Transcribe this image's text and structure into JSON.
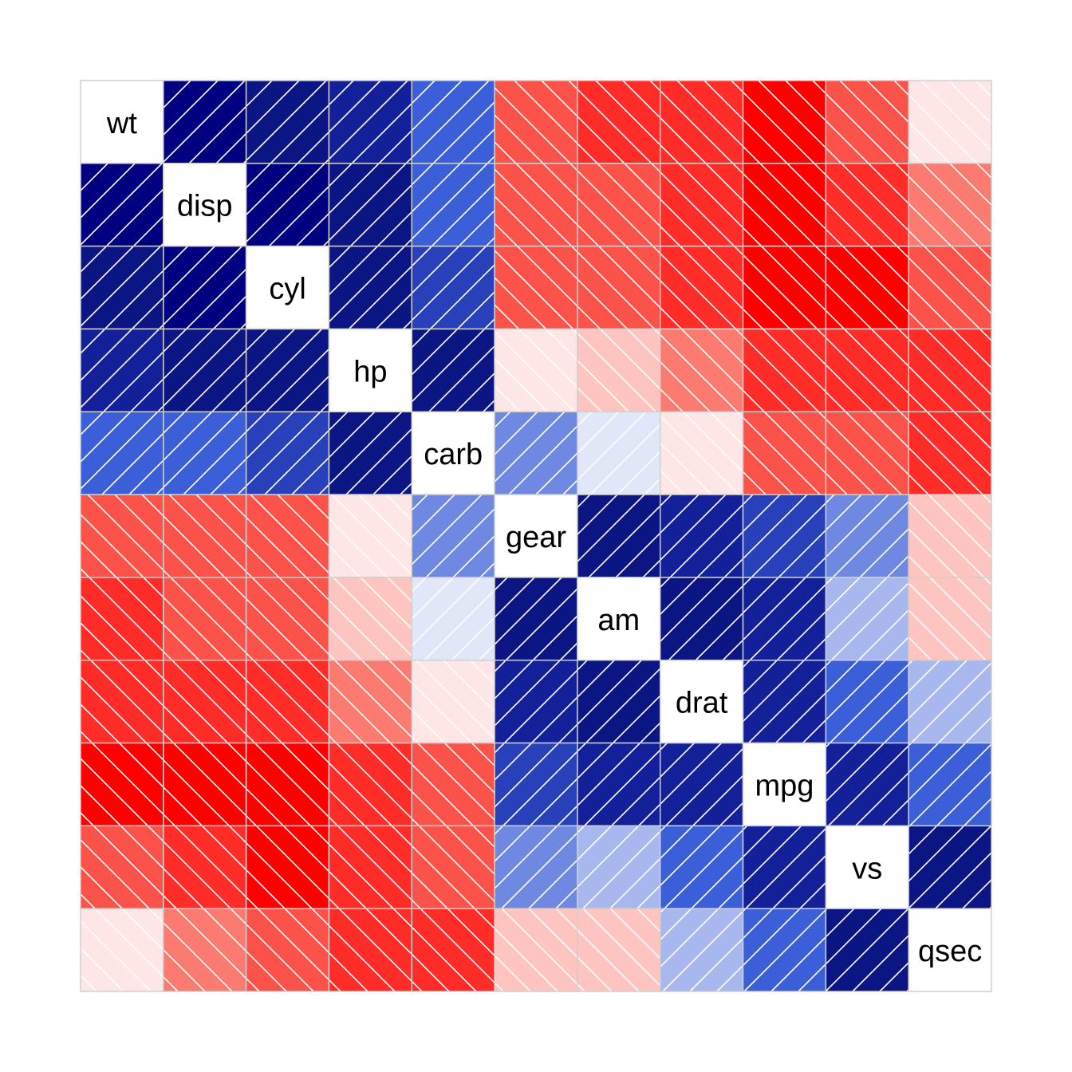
{
  "chart_data": {
    "type": "heatmap",
    "title": "",
    "variables": [
      "wt",
      "disp",
      "cyl",
      "hp",
      "carb",
      "gear",
      "am",
      "drat",
      "mpg",
      "vs",
      "qsec"
    ],
    "matrix": [
      [
        1.0,
        0.89,
        0.78,
        0.66,
        0.43,
        -0.58,
        -0.69,
        -0.71,
        -0.87,
        -0.55,
        -0.17
      ],
      [
        0.89,
        1.0,
        0.9,
        0.79,
        0.39,
        -0.56,
        -0.59,
        -0.71,
        -0.85,
        -0.71,
        -0.43
      ],
      [
        0.78,
        0.9,
        1.0,
        0.83,
        0.53,
        -0.49,
        -0.52,
        -0.7,
        -0.85,
        -0.81,
        -0.59
      ],
      [
        0.66,
        0.79,
        0.83,
        1.0,
        0.75,
        -0.13,
        -0.24,
        -0.45,
        -0.78,
        -0.72,
        -0.71
      ],
      [
        0.43,
        0.39,
        0.53,
        0.75,
        1.0,
        0.27,
        0.06,
        -0.09,
        -0.55,
        -0.57,
        -0.66
      ],
      [
        -0.58,
        -0.56,
        -0.49,
        -0.13,
        0.27,
        1.0,
        0.79,
        0.7,
        0.48,
        0.21,
        -0.21
      ],
      [
        -0.69,
        -0.59,
        -0.52,
        -0.24,
        0.06,
        0.79,
        1.0,
        0.71,
        0.6,
        0.17,
        -0.23
      ],
      [
        -0.71,
        -0.71,
        -0.7,
        -0.45,
        -0.09,
        0.7,
        0.71,
        1.0,
        0.68,
        0.44,
        0.09
      ],
      [
        -0.87,
        -0.85,
        -0.85,
        -0.78,
        -0.55,
        0.48,
        0.6,
        0.68,
        1.0,
        0.66,
        0.42
      ],
      [
        -0.55,
        -0.71,
        -0.81,
        -0.72,
        -0.57,
        0.21,
        0.17,
        0.44,
        0.66,
        1.0,
        0.74
      ],
      [
        -0.17,
        -0.43,
        -0.59,
        -0.71,
        -0.66,
        -0.21,
        -0.23,
        0.09,
        0.42,
        0.74,
        1.0
      ]
    ],
    "color_scale": {
      "positive": [
        "#e0e7f8",
        "#a8b8ee",
        "#6f89e2",
        "#3b5fd9",
        "#2840ba",
        "#141f9a",
        "#0b1583",
        "#000080"
      ],
      "negative": [
        "#ffe6e6",
        "#fec4c0",
        "#fb7b70",
        "#fb5249",
        "#ff2c28",
        "#ff0000"
      ]
    },
    "shading": "diagonal hatch lines (positive: /, negative: \\)",
    "legend": "none",
    "grid": true
  }
}
